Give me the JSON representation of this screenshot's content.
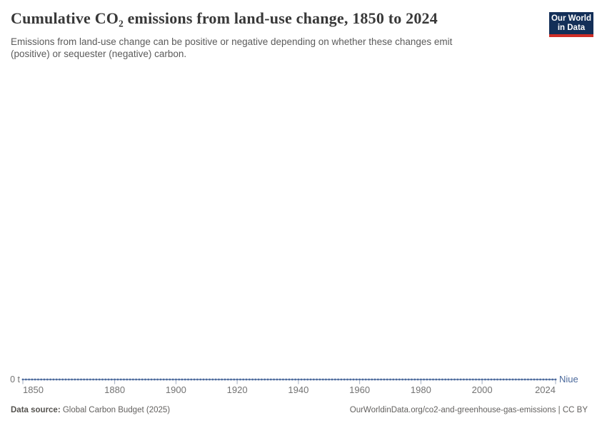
{
  "header": {
    "title": "Cumulative CO₂ emissions from land-use change, 1850 to 2024",
    "subtitle": "Emissions from land-use change can be positive or negative depending on whether these changes emit (positive) or sequester (negative) carbon.",
    "logo": {
      "line1": "Our World",
      "line2": "in Data"
    }
  },
  "footer": {
    "source_label": "Data source:",
    "source_value": " Global Carbon Budget (2025)",
    "citation": "OurWorldinData.org/co2-and-greenhouse-gas-emissions | CC BY"
  },
  "colors": {
    "series_blue": "#4C6A9C",
    "logo_navy": "#132f58",
    "logo_red": "#cf2e27",
    "axis_tick": "#a3aebf"
  },
  "chart_data": {
    "type": "line",
    "title": "Cumulative CO₂ emissions from land-use change, 1850 to 2024",
    "subtitle": "Emissions from land-use change can be positive or negative depending on whether these changes emit (positive) or sequester (negative) carbon.",
    "grid": false,
    "legend_position": "end-of-line",
    "xlim": [
      1850,
      2024
    ],
    "x_ticks": [
      1850,
      1880,
      1900,
      1920,
      1940,
      1960,
      1980,
      2000,
      2024
    ],
    "y_axis_label": "0 t",
    "y_ticks_shown": [
      "0 t"
    ],
    "unit": "t",
    "series": [
      {
        "name": "Niue",
        "color": "#4C6A9C",
        "x_start": 1850,
        "x_end": 2024,
        "x_step": 1,
        "constant_value": 0,
        "note": "flat line at 0 t for every year 1850-2024",
        "marker": "circle"
      }
    ]
  }
}
